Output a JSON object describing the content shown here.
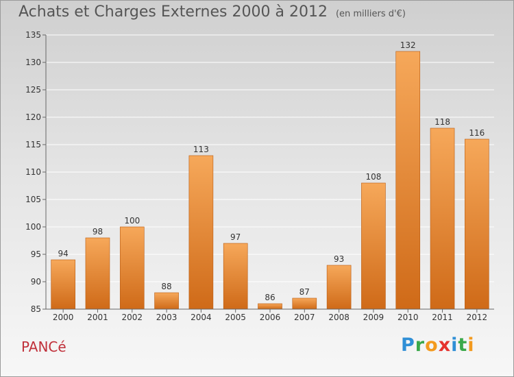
{
  "title": "Achats et Charges Externes 2000 à 2012",
  "subtitle": "(en milliers d'€)",
  "place": "PANCé",
  "logo": {
    "text": "Proxiti",
    "letters": [
      {
        "ch": "P",
        "color": "#2f8fd6"
      },
      {
        "ch": "r",
        "color": "#3aa84a"
      },
      {
        "ch": "o",
        "color": "#f39a1e"
      },
      {
        "ch": "x",
        "color": "#e5322d"
      },
      {
        "ch": "i",
        "color": "#2f8fd6"
      },
      {
        "ch": "t",
        "color": "#3aa84a"
      },
      {
        "ch": "i",
        "color": "#f39a1e"
      }
    ]
  },
  "colors": {
    "bar_top": "#f6a85a",
    "bar_bottom": "#cf6a18",
    "bar_edge": "#b85a10",
    "grid": "#ffffff",
    "axis": "#666666",
    "text": "#333333"
  },
  "chart_data": {
    "type": "bar",
    "categories": [
      "2000",
      "2001",
      "2002",
      "2003",
      "2004",
      "2005",
      "2006",
      "2007",
      "2008",
      "2009",
      "2010",
      "2011",
      "2012"
    ],
    "values": [
      94,
      98,
      100,
      88,
      113,
      97,
      86,
      87,
      93,
      108,
      132,
      118,
      116
    ],
    "ylim": [
      85,
      135
    ],
    "yticks": [
      85,
      90,
      95,
      100,
      105,
      110,
      115,
      120,
      125,
      130,
      135
    ],
    "grid": true,
    "xlabel": "",
    "ylabel": ""
  }
}
